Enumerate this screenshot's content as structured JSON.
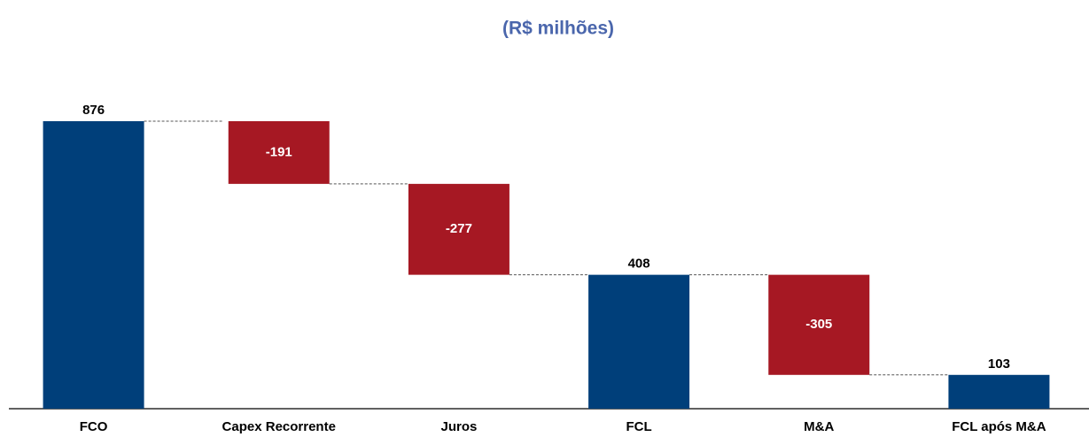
{
  "chart_data": {
    "type": "waterfall",
    "title": "(R$ milhões)",
    "categories": [
      "FCO",
      "Capex Recorrente",
      "Juros",
      "FCL",
      "M&A",
      "FCL após M&A"
    ],
    "values": [
      876,
      -191,
      -277,
      408,
      -305,
      103
    ],
    "measure": [
      "absolute",
      "relative",
      "relative",
      "absolute",
      "relative",
      "absolute"
    ],
    "colors": {
      "absolute": "#003f7a",
      "relative": "#a61823"
    }
  }
}
